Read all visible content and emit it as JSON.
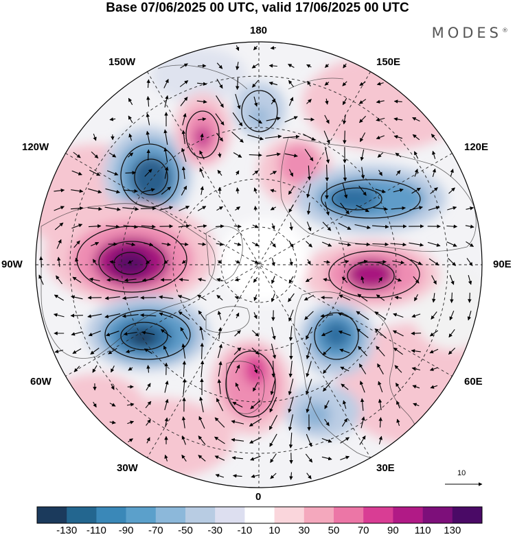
{
  "title": "Base 07/06/2025 00 UTC, valid 17/06/2025 00 UTC",
  "brand": "MODES",
  "brand_mark": "®",
  "longitude_labels": {
    "top": "180",
    "top_right": "150E",
    "upper_right": "120E",
    "right": "90E",
    "lower_right": "60E",
    "bottom_right": "30E",
    "bottom": "0",
    "bottom_left": "30W",
    "lower_left": "60W",
    "left": "90W",
    "upper_left": "120W",
    "top_left": "150W"
  },
  "reference_vector_label": "10",
  "colorbar": {
    "ticks": [
      "-130",
      "-110",
      "-90",
      "-70",
      "-50",
      "-30",
      "-10",
      "10",
      "30",
      "50",
      "70",
      "90",
      "110",
      "130"
    ],
    "colors": [
      "#1b3a5c",
      "#23668f",
      "#3a88b8",
      "#5ba0cb",
      "#8cb8da",
      "#b8cce3",
      "#dddff0",
      "#ffffff",
      "#fad6dc",
      "#f4a8bd",
      "#ec76a6",
      "#d93d94",
      "#b11a86",
      "#7d0f7a",
      "#4a0a66"
    ]
  },
  "anomaly_colors": {
    "strong_negative": "#2c5f8c",
    "negative": "#5e9cc9",
    "weak_negative": "#bccde4",
    "weak_positive": "#f6c6d1",
    "positive": "#ee8db3",
    "strong_positive": "#a8197f",
    "land": "#ececec"
  }
}
